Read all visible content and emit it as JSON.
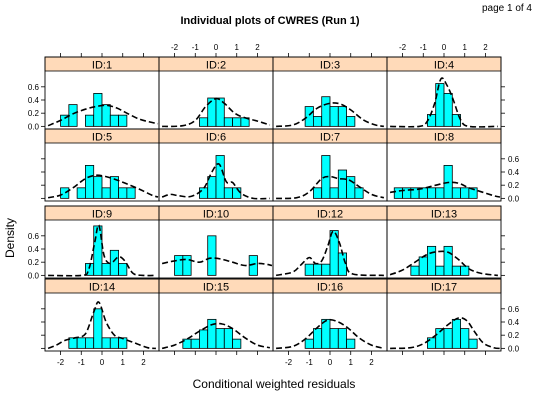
{
  "page_label": "page 1 of 4",
  "chart_data": {
    "type": "bar",
    "title": "Individual plots of CWRES (Run 1)",
    "xlabel": "Conditional weighted residuals",
    "ylabel": "Density",
    "xlim": [
      -2.75,
      2.75
    ],
    "ylim": [
      -0.04,
      0.84
    ],
    "x_ticks": [
      -2,
      -1,
      0,
      1,
      2
    ],
    "y_ticks": [
      0.0,
      0.2,
      0.4,
      0.6
    ],
    "x_tick_labels": [
      "-2",
      "-1",
      "0",
      "1",
      "2"
    ],
    "y_tick_labels": [
      "0.0",
      "0.2",
      "0.4",
      "0.6"
    ],
    "bin_width": 0.4,
    "bin_starts": [
      -2.4,
      -2.0,
      -1.6,
      -1.2,
      -0.8,
      -0.4,
      0.0,
      0.4,
      0.8,
      1.2,
      1.6,
      2.0
    ],
    "colors": {
      "bar_fill": "#00ffff",
      "bar_stroke": "#000000",
      "strip_fill": "#ffdab9",
      "density_line": "#000000"
    },
    "panels": [
      {
        "label": "ID:1",
        "densities": [
          0,
          0.17,
          0.33,
          0,
          0.17,
          0.5,
          0.33,
          0.17,
          0.17,
          0,
          0,
          0
        ],
        "density_curve": [
          [
            -2.6,
            0.01
          ],
          [
            -2.0,
            0.09
          ],
          [
            -1.4,
            0.19
          ],
          [
            -0.8,
            0.26
          ],
          [
            -0.3,
            0.3
          ],
          [
            0.2,
            0.32
          ],
          [
            0.7,
            0.28
          ],
          [
            1.2,
            0.2
          ],
          [
            1.8,
            0.11
          ],
          [
            2.4,
            0.06
          ],
          [
            2.7,
            0.04
          ]
        ]
      },
      {
        "label": "ID:2",
        "densities": [
          0,
          0,
          0,
          0,
          0.13,
          0.43,
          0.43,
          0.13,
          0.13,
          0.13,
          0,
          0
        ],
        "density_curve": [
          [
            -2.6,
            0.0
          ],
          [
            -1.6,
            0.01
          ],
          [
            -1.0,
            0.09
          ],
          [
            -0.5,
            0.3
          ],
          [
            0.0,
            0.42
          ],
          [
            0.4,
            0.35
          ],
          [
            0.9,
            0.2
          ],
          [
            1.4,
            0.13
          ],
          [
            2.0,
            0.08
          ],
          [
            2.6,
            0.02
          ]
        ]
      },
      {
        "label": "ID:3",
        "densities": [
          0,
          0,
          0,
          0.3,
          0.15,
          0.45,
          0.3,
          0.3,
          0.15,
          0,
          0,
          0
        ],
        "density_curve": [
          [
            -2.6,
            0.0
          ],
          [
            -1.8,
            0.02
          ],
          [
            -1.2,
            0.12
          ],
          [
            -0.6,
            0.28
          ],
          [
            0.0,
            0.35
          ],
          [
            0.5,
            0.34
          ],
          [
            1.0,
            0.25
          ],
          [
            1.6,
            0.1
          ],
          [
            2.2,
            0.02
          ],
          [
            2.6,
            0.0
          ]
        ]
      },
      {
        "label": "ID:4",
        "densities": [
          0,
          0,
          0,
          0,
          0.18,
          0.65,
          0.5,
          0.18,
          0,
          0,
          0,
          0
        ],
        "density_curve": [
          [
            -2.6,
            0.0
          ],
          [
            -1.2,
            0.0
          ],
          [
            -0.8,
            0.08
          ],
          [
            -0.45,
            0.35
          ],
          [
            -0.15,
            0.72
          ],
          [
            0.15,
            0.62
          ],
          [
            0.45,
            0.4
          ],
          [
            0.8,
            0.1
          ],
          [
            1.2,
            0.0
          ],
          [
            2.6,
            0.0
          ]
        ]
      },
      {
        "label": "ID:5",
        "densities": [
          0,
          0.16,
          0,
          0.16,
          0.5,
          0.33,
          0.16,
          0.33,
          0.16,
          0.16,
          0,
          0
        ],
        "density_curve": [
          [
            -2.6,
            0.01
          ],
          [
            -2.0,
            0.05
          ],
          [
            -1.4,
            0.16
          ],
          [
            -0.8,
            0.3
          ],
          [
            -0.3,
            0.35
          ],
          [
            0.2,
            0.33
          ],
          [
            0.7,
            0.28
          ],
          [
            1.2,
            0.22
          ],
          [
            1.8,
            0.14
          ],
          [
            2.4,
            0.05
          ],
          [
            2.7,
            0.02
          ]
        ]
      },
      {
        "label": "ID:6",
        "densities": [
          0,
          0,
          0,
          0,
          0.16,
          0.33,
          0.65,
          0.16,
          0.16,
          0,
          0,
          0
        ],
        "density_curve": [
          [
            -2.6,
            0.02
          ],
          [
            -2.2,
            0.06
          ],
          [
            -1.8,
            0.04
          ],
          [
            -1.2,
            0.03
          ],
          [
            -0.6,
            0.15
          ],
          [
            -0.2,
            0.4
          ],
          [
            0.15,
            0.52
          ],
          [
            0.5,
            0.25
          ],
          [
            0.8,
            0.24
          ],
          [
            1.2,
            0.08
          ],
          [
            1.8,
            0.0
          ],
          [
            2.6,
            0.0
          ]
        ]
      },
      {
        "label": "ID:7",
        "densities": [
          0,
          0,
          0,
          0,
          0.16,
          0.65,
          0.16,
          0.43,
          0.33,
          0.16,
          0,
          0
        ],
        "density_curve": [
          [
            -2.6,
            0.0
          ],
          [
            -1.6,
            0.01
          ],
          [
            -1.0,
            0.1
          ],
          [
            -0.4,
            0.3
          ],
          [
            0.0,
            0.33
          ],
          [
            0.4,
            0.3
          ],
          [
            0.9,
            0.28
          ],
          [
            1.4,
            0.18
          ],
          [
            2.0,
            0.06
          ],
          [
            2.6,
            0.01
          ]
        ]
      },
      {
        "label": "ID:8",
        "densities": [
          0.16,
          0.16,
          0.16,
          0.16,
          0.16,
          0.16,
          0.5,
          0.16,
          0.16,
          0.16,
          0,
          0
        ],
        "density_curve": [
          [
            -2.6,
            0.09
          ],
          [
            -2.0,
            0.12
          ],
          [
            -1.2,
            0.14
          ],
          [
            -0.4,
            0.2
          ],
          [
            0.2,
            0.24
          ],
          [
            0.7,
            0.23
          ],
          [
            1.2,
            0.16
          ],
          [
            1.8,
            0.1
          ],
          [
            2.4,
            0.04
          ],
          [
            2.7,
            0.02
          ]
        ]
      },
      {
        "label": "ID:9",
        "densities": [
          0,
          0,
          0,
          0,
          0.18,
          0.75,
          0.18,
          0.38,
          0.18,
          0,
          0,
          0
        ],
        "density_curve": [
          [
            -2.6,
            0.0
          ],
          [
            -1.0,
            0.0
          ],
          [
            -0.65,
            0.08
          ],
          [
            -0.35,
            0.5
          ],
          [
            -0.15,
            0.76
          ],
          [
            0.1,
            0.3
          ],
          [
            0.4,
            0.18
          ],
          [
            0.8,
            0.28
          ],
          [
            1.1,
            0.22
          ],
          [
            1.5,
            0.03
          ],
          [
            2.0,
            0.0
          ],
          [
            2.6,
            0.0
          ]
        ]
      },
      {
        "label": "ID:10",
        "densities": [
          0,
          0.3,
          0.3,
          0,
          0,
          0.6,
          0,
          0,
          0,
          0,
          0.3,
          0
        ],
        "density_curve": [
          [
            -2.6,
            0.18
          ],
          [
            -2.0,
            0.22
          ],
          [
            -1.4,
            0.24
          ],
          [
            -0.8,
            0.2
          ],
          [
            -0.3,
            0.26
          ],
          [
            0.2,
            0.25
          ],
          [
            0.8,
            0.2
          ],
          [
            1.4,
            0.15
          ],
          [
            2.0,
            0.18
          ],
          [
            2.4,
            0.17
          ],
          [
            2.7,
            0.15
          ]
        ]
      },
      {
        "label": "ID:12",
        "densities": [
          0,
          0,
          0,
          0.17,
          0.17,
          0.17,
          0.68,
          0.34,
          0,
          0,
          0,
          0
        ],
        "density_curve": [
          [
            -2.6,
            0.0
          ],
          [
            -1.8,
            0.05
          ],
          [
            -1.4,
            0.16
          ],
          [
            -1.0,
            0.27
          ],
          [
            -0.7,
            0.18
          ],
          [
            -0.4,
            0.22
          ],
          [
            -0.1,
            0.45
          ],
          [
            0.15,
            0.67
          ],
          [
            0.45,
            0.5
          ],
          [
            0.75,
            0.18
          ],
          [
            1.1,
            0.02
          ],
          [
            2.6,
            0.0
          ]
        ]
      },
      {
        "label": "ID:13",
        "densities": [
          0,
          0,
          0.14,
          0.28,
          0.44,
          0.14,
          0.44,
          0.14,
          0.14,
          0,
          0,
          0
        ],
        "density_curve": [
          [
            -2.6,
            0.01
          ],
          [
            -2.0,
            0.08
          ],
          [
            -1.4,
            0.2
          ],
          [
            -0.8,
            0.32
          ],
          [
            -0.3,
            0.36
          ],
          [
            0.2,
            0.35
          ],
          [
            0.7,
            0.24
          ],
          [
            1.2,
            0.1
          ],
          [
            1.8,
            0.03
          ],
          [
            2.6,
            0.0
          ]
        ]
      },
      {
        "label": "ID:14",
        "densities": [
          0,
          0,
          0.16,
          0.16,
          0.16,
          0.6,
          0.16,
          0.16,
          0.16,
          0,
          0,
          0
        ],
        "density_curve": [
          [
            -2.6,
            0.0
          ],
          [
            -2.2,
            0.05
          ],
          [
            -1.8,
            0.12
          ],
          [
            -1.3,
            0.16
          ],
          [
            -0.8,
            0.22
          ],
          [
            -0.4,
            0.55
          ],
          [
            -0.15,
            0.7
          ],
          [
            0.2,
            0.4
          ],
          [
            0.6,
            0.2
          ],
          [
            1.0,
            0.15
          ],
          [
            1.6,
            0.08
          ],
          [
            2.2,
            0.01
          ],
          [
            2.6,
            0.0
          ]
        ]
      },
      {
        "label": "ID:15",
        "densities": [
          0,
          0,
          0.14,
          0.14,
          0.28,
          0.44,
          0.3,
          0.3,
          0.14,
          0,
          0,
          0
        ],
        "density_curve": [
          [
            -2.6,
            0.0
          ],
          [
            -2.0,
            0.05
          ],
          [
            -1.4,
            0.14
          ],
          [
            -0.8,
            0.26
          ],
          [
            -0.2,
            0.36
          ],
          [
            0.3,
            0.37
          ],
          [
            0.8,
            0.3
          ],
          [
            1.4,
            0.16
          ],
          [
            2.0,
            0.05
          ],
          [
            2.6,
            0.01
          ]
        ]
      },
      {
        "label": "ID:16",
        "densities": [
          0,
          0,
          0,
          0.14,
          0.3,
          0.44,
          0.3,
          0.3,
          0.14,
          0,
          0,
          0
        ],
        "density_curve": [
          [
            -2.6,
            0.0
          ],
          [
            -1.8,
            0.03
          ],
          [
            -1.2,
            0.14
          ],
          [
            -0.6,
            0.32
          ],
          [
            -0.1,
            0.43
          ],
          [
            0.4,
            0.4
          ],
          [
            0.9,
            0.3
          ],
          [
            1.4,
            0.16
          ],
          [
            2.0,
            0.05
          ],
          [
            2.6,
            0.0
          ]
        ]
      },
      {
        "label": "ID:17",
        "densities": [
          0,
          0,
          0,
          0,
          0.16,
          0.3,
          0.3,
          0.44,
          0.3,
          0.14,
          0,
          0
        ],
        "density_curve": [
          [
            -2.6,
            0.0
          ],
          [
            -1.6,
            0.01
          ],
          [
            -1.0,
            0.07
          ],
          [
            -0.4,
            0.2
          ],
          [
            0.2,
            0.36
          ],
          [
            0.7,
            0.46
          ],
          [
            1.1,
            0.42
          ],
          [
            1.5,
            0.24
          ],
          [
            1.9,
            0.08
          ],
          [
            2.4,
            0.01
          ],
          [
            2.7,
            0.0
          ]
        ]
      }
    ]
  }
}
